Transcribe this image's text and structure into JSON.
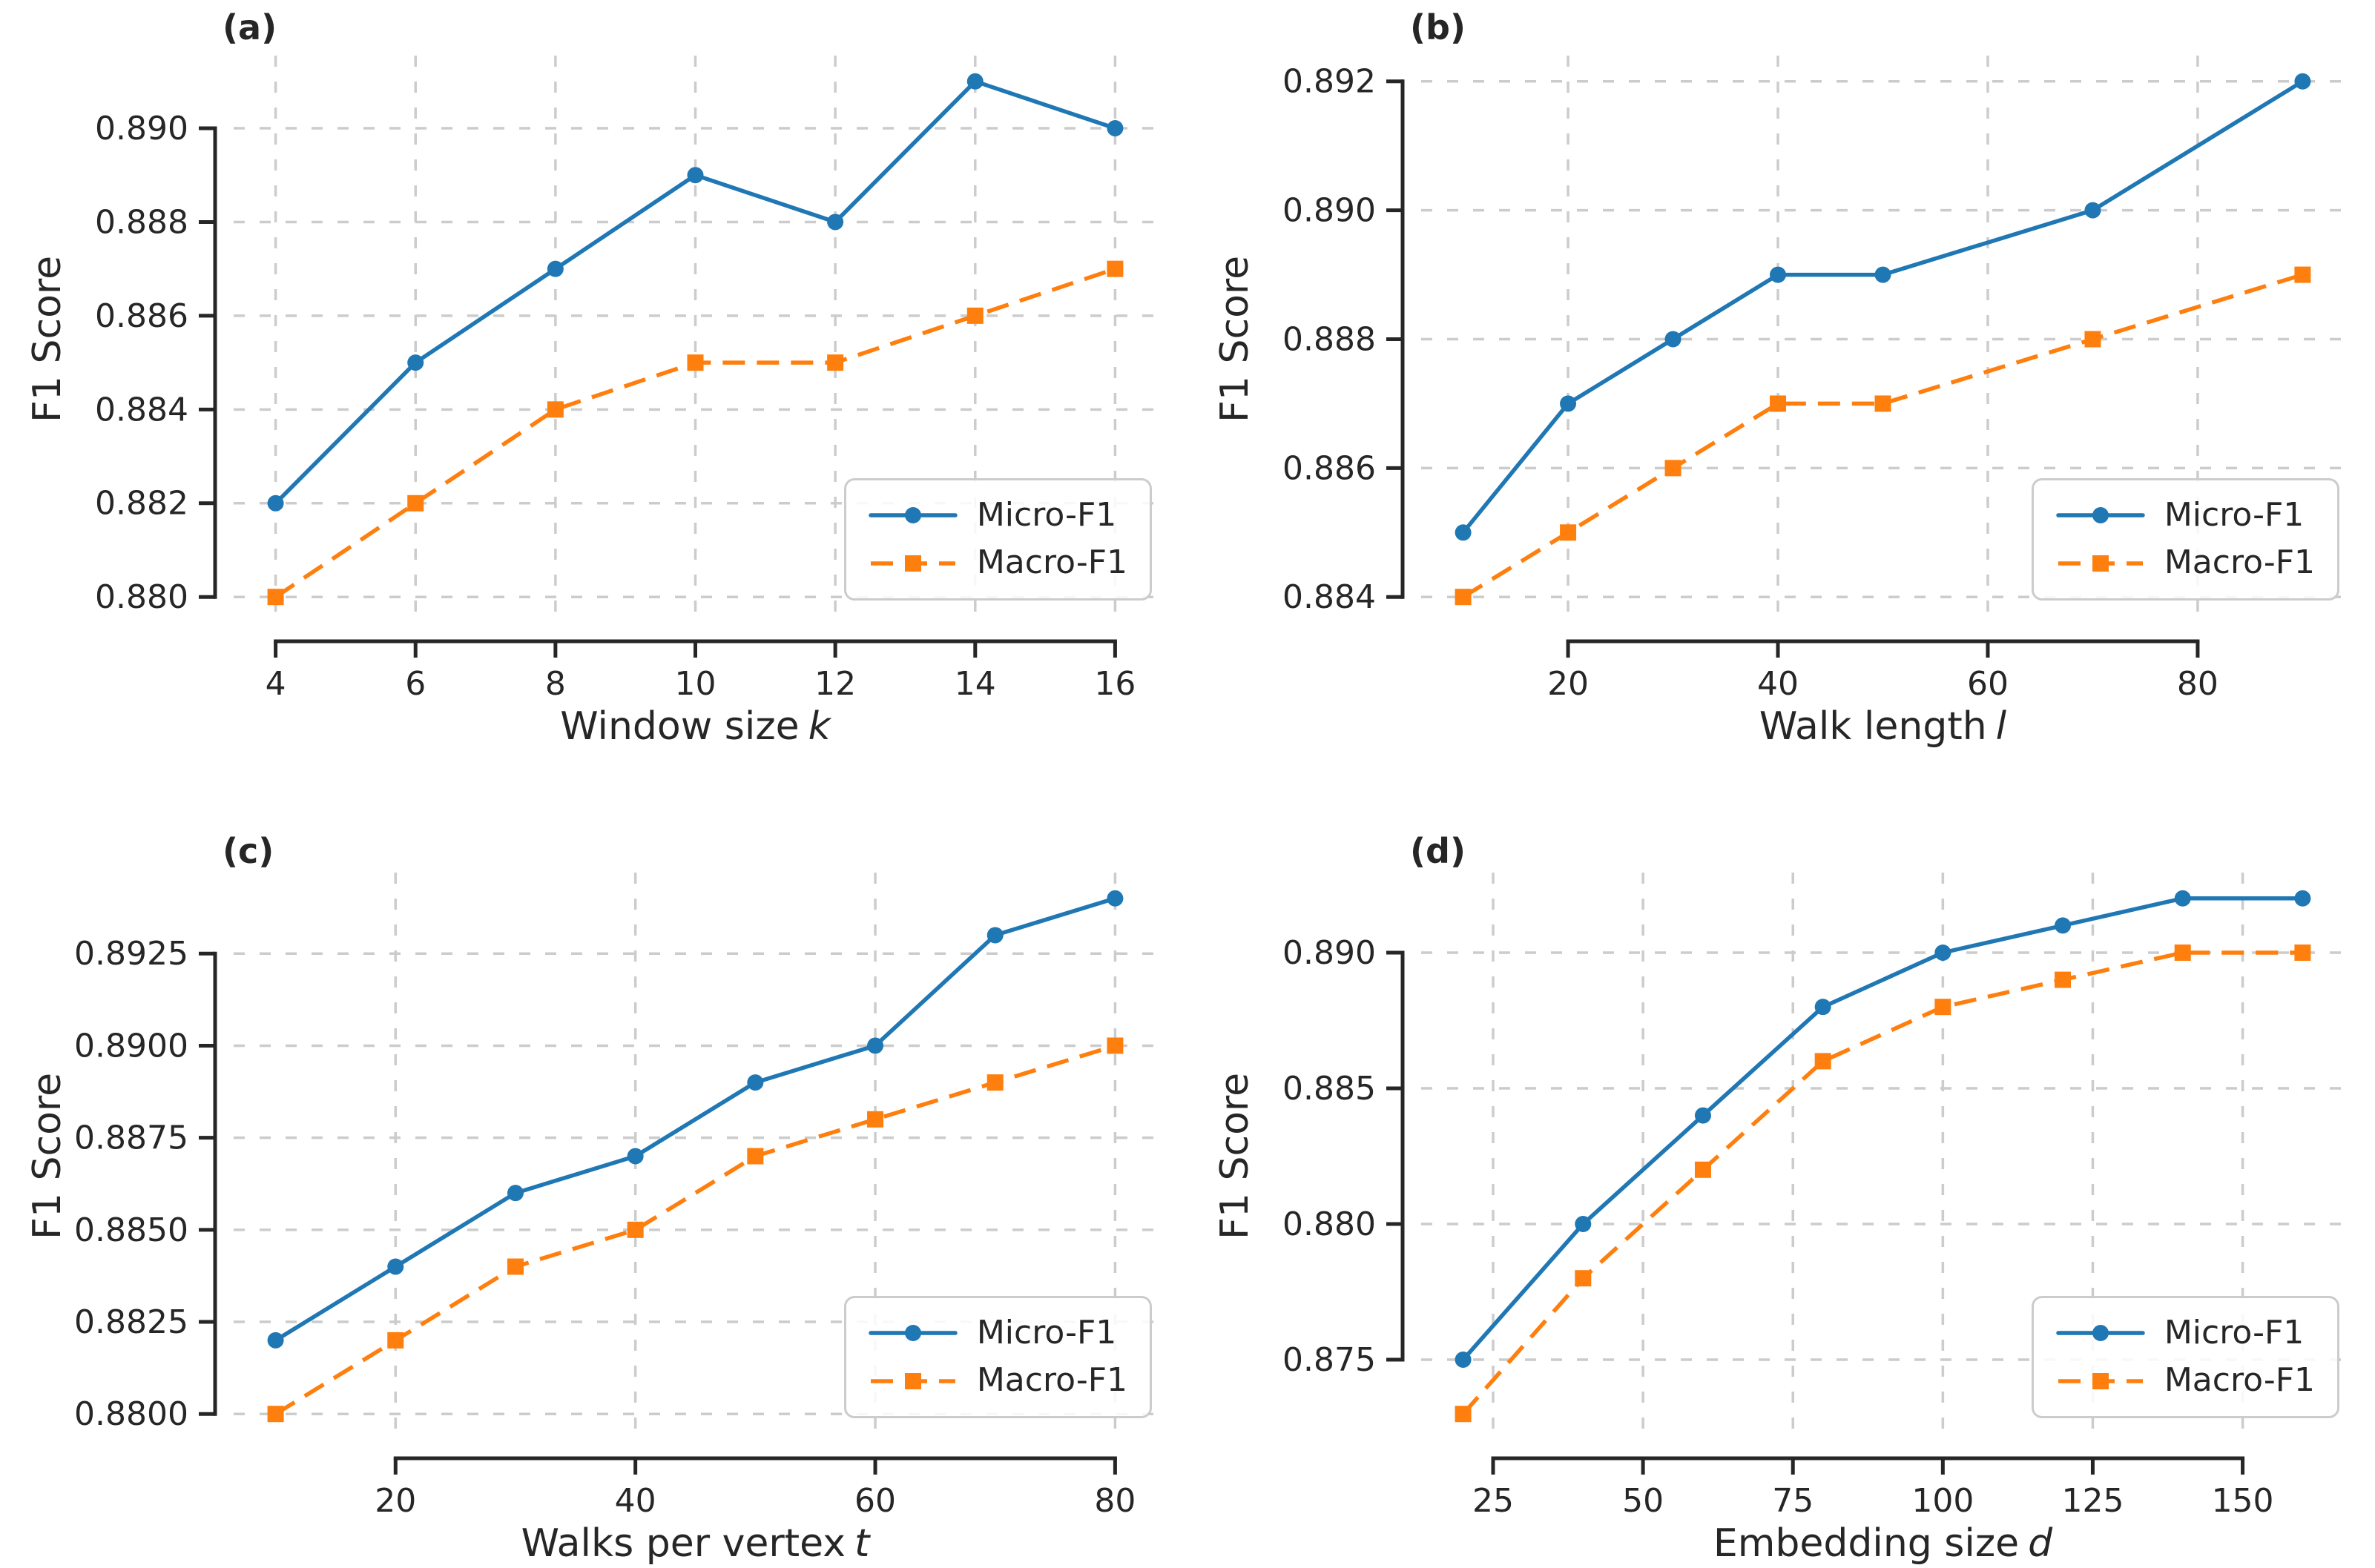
{
  "figure": {
    "background": "#ffffff",
    "text_color": "#262626",
    "grid_color": "#cccccc",
    "legend_border_color": "#cccccc"
  },
  "legend": {
    "micro_label": "Micro-F1",
    "macro_label": "Macro-F1",
    "position": "lower right"
  },
  "series_styles": {
    "micro": {
      "color": "#1f77b4",
      "line": "solid",
      "marker": "circle"
    },
    "macro": {
      "color": "#ff7f0e",
      "line": "dashed",
      "marker": "square"
    }
  },
  "chart_data": [
    {
      "id": "a",
      "panel_label": "(a)",
      "type": "line",
      "xlabel": "Window size k",
      "xlabel_text": "Window size",
      "xlabel_var": "k",
      "ylabel": "F1 Score",
      "grid": true,
      "legend_position": "lower right",
      "x": [
        4,
        6,
        8,
        10,
        12,
        14,
        16
      ],
      "series": [
        {
          "key": "micro",
          "name": "Micro-F1",
          "values": [
            0.882,
            0.885,
            0.887,
            0.889,
            0.888,
            0.891,
            0.89
          ]
        },
        {
          "key": "macro",
          "name": "Macro-F1",
          "values": [
            0.88,
            0.882,
            0.884,
            0.885,
            0.885,
            0.886,
            0.887
          ]
        }
      ],
      "xlim": [
        3.4,
        16.6
      ],
      "ylim": [
        0.87945,
        0.89155
      ],
      "xticks": [
        4,
        6,
        8,
        10,
        12,
        14,
        16
      ],
      "xtick_labels": [
        "4",
        "6",
        "8",
        "10",
        "12",
        "14",
        "16"
      ],
      "yticks": [
        0.88,
        0.882,
        0.884,
        0.886,
        0.888,
        0.89
      ],
      "ytick_labels": [
        "0.880",
        "0.882",
        "0.884",
        "0.886",
        "0.888",
        "0.890"
      ]
    },
    {
      "id": "b",
      "panel_label": "(b)",
      "type": "line",
      "xlabel": "Walk length l",
      "xlabel_text": "Walk length",
      "xlabel_var": "l",
      "ylabel": "F1 Score",
      "grid": true,
      "legend_position": "lower right",
      "x": [
        10,
        20,
        30,
        40,
        50,
        70,
        90
      ],
      "series": [
        {
          "key": "micro",
          "name": "Micro-F1",
          "values": [
            0.885,
            0.887,
            0.888,
            0.889,
            0.889,
            0.89,
            0.892
          ]
        },
        {
          "key": "macro",
          "name": "Macro-F1",
          "values": [
            0.884,
            0.885,
            0.886,
            0.887,
            0.887,
            0.888,
            0.889
          ]
        }
      ],
      "xlim": [
        6,
        94
      ],
      "ylim": [
        0.8836,
        0.8924
      ],
      "xticks": [
        20,
        40,
        60,
        80
      ],
      "xtick_labels": [
        "20",
        "40",
        "60",
        "80"
      ],
      "yticks": [
        0.884,
        0.886,
        0.888,
        0.89,
        0.892
      ],
      "ytick_labels": [
        "0.884",
        "0.886",
        "0.888",
        "0.890",
        "0.892"
      ]
    },
    {
      "id": "c",
      "panel_label": "(c)",
      "type": "line",
      "xlabel": "Walks per vertex t",
      "xlabel_text": "Walks per vertex",
      "xlabel_var": "t",
      "ylabel": "F1 Score",
      "grid": true,
      "legend_position": "lower right",
      "x": [
        10,
        20,
        30,
        40,
        50,
        60,
        70,
        80
      ],
      "series": [
        {
          "key": "micro",
          "name": "Micro-F1",
          "values": [
            0.882,
            0.884,
            0.886,
            0.887,
            0.889,
            0.89,
            0.893,
            0.894
          ]
        },
        {
          "key": "macro",
          "name": "Macro-F1",
          "values": [
            0.88,
            0.882,
            0.884,
            0.885,
            0.887,
            0.888,
            0.889,
            0.89
          ]
        }
      ],
      "xlim": [
        6.5,
        83.5
      ],
      "ylim": [
        0.8793,
        0.8947
      ],
      "xticks": [
        20,
        40,
        60,
        80
      ],
      "xtick_labels": [
        "20",
        "40",
        "60",
        "80"
      ],
      "yticks": [
        0.88,
        0.8825,
        0.885,
        0.8875,
        0.89,
        0.8925
      ],
      "ytick_labels": [
        "0.8800",
        "0.8825",
        "0.8850",
        "0.8875",
        "0.8900",
        "0.8925"
      ]
    },
    {
      "id": "d",
      "panel_label": "(d)",
      "type": "line",
      "xlabel": "Embedding size d",
      "xlabel_text": "Embedding size",
      "xlabel_var": "d",
      "ylabel": "F1 Score",
      "grid": true,
      "legend_position": "lower right",
      "x": [
        20,
        40,
        60,
        80,
        100,
        120,
        140,
        160
      ],
      "series": [
        {
          "key": "micro",
          "name": "Micro-F1",
          "values": [
            0.875,
            0.88,
            0.884,
            0.888,
            0.89,
            0.891,
            0.892,
            0.892
          ]
        },
        {
          "key": "macro",
          "name": "Macro-F1",
          "values": [
            0.873,
            0.878,
            0.882,
            0.886,
            0.888,
            0.889,
            0.89,
            0.89
          ]
        }
      ],
      "xlim": [
        13,
        167
      ],
      "ylim": [
        0.87205,
        0.89295
      ],
      "xticks": [
        25,
        50,
        75,
        100,
        125,
        150
      ],
      "xtick_labels": [
        "25",
        "50",
        "75",
        "100",
        "125",
        "150"
      ],
      "yticks": [
        0.875,
        0.88,
        0.885,
        0.89
      ],
      "ytick_labels": [
        "0.875",
        "0.880",
        "0.885",
        "0.890"
      ]
    }
  ]
}
